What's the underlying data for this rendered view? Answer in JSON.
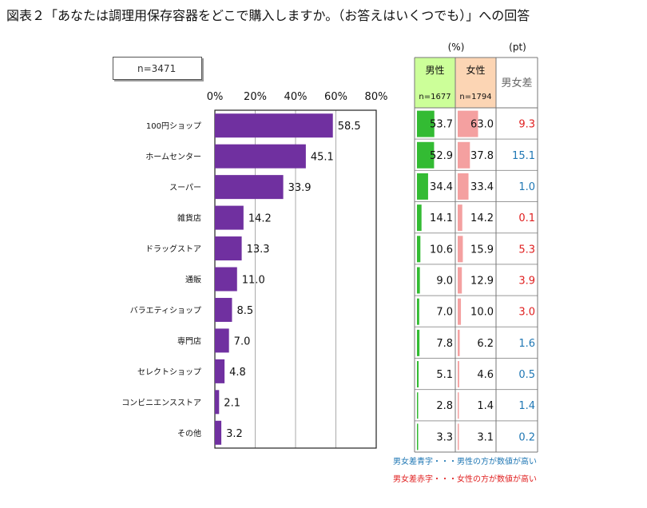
{
  "title": "図表２「あなたは調理用保存容器をどこで購入しますか。（お答えはいくつでも）」への回答",
  "n_total": "n=3471",
  "chart_data": {
    "type": "bar",
    "orientation": "horizontal",
    "xlim": [
      0,
      80
    ],
    "ticks": [
      "0%",
      "20%",
      "40%",
      "60%",
      "80%"
    ],
    "tick_values": [
      0,
      20,
      40,
      60,
      80
    ],
    "grid": true,
    "categories": [
      "100円ショップ",
      "ホームセンター",
      "スーパー",
      "雑貨店",
      "ドラッグストア",
      "通販",
      "バラエティショップ",
      "専門店",
      "セレクトショップ",
      "コンビニエンスストア",
      "その他"
    ],
    "values": [
      58.5,
      45.1,
      33.9,
      14.2,
      13.3,
      11.0,
      8.5,
      7.0,
      4.8,
      2.1,
      3.2
    ],
    "bar_color": "#7030a0"
  },
  "table": {
    "unit_pct": "(%)",
    "unit_pt": "(pt)",
    "male_label": "男性",
    "male_n": "n=1677",
    "female_label": "女性",
    "female_n": "n=1794",
    "diff_label": "男女差",
    "male_bar_color": "#33bb33",
    "female_bar_color": "#f4a0a0",
    "male_header_bg": "#ccff99",
    "female_header_bg": "#fcd5b4",
    "blue": "#1f77b4",
    "red": "#e02020",
    "rows": [
      {
        "male": 53.7,
        "female": 63.0,
        "diff": "9.3",
        "color": "red"
      },
      {
        "male": 52.9,
        "female": 37.8,
        "diff": "15.1",
        "color": "blue"
      },
      {
        "male": 34.4,
        "female": 33.4,
        "diff": "1.0",
        "color": "blue"
      },
      {
        "male": 14.1,
        "female": 14.2,
        "diff": "0.1",
        "color": "red"
      },
      {
        "male": 10.6,
        "female": 15.9,
        "diff": "5.3",
        "color": "red"
      },
      {
        "male": 9.0,
        "female": 12.9,
        "diff": "3.9",
        "color": "red"
      },
      {
        "male": 7.0,
        "female": 10.0,
        "diff": "3.0",
        "color": "red"
      },
      {
        "male": 7.8,
        "female": 6.2,
        "diff": "1.6",
        "color": "blue"
      },
      {
        "male": 5.1,
        "female": 4.6,
        "diff": "0.5",
        "color": "blue"
      },
      {
        "male": 2.8,
        "female": 1.4,
        "diff": "1.4",
        "color": "blue"
      },
      {
        "male": 3.3,
        "female": 3.1,
        "diff": "0.2",
        "color": "blue"
      }
    ]
  },
  "notes": {
    "blue_note": "男女差青字・・・男性の方が数値が高い",
    "red_note": "男女差赤字・・・女性の方が数値が高い"
  }
}
